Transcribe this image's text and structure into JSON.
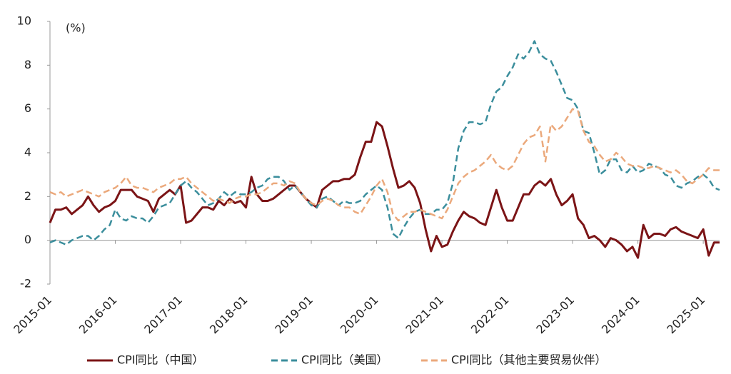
{
  "chart_data": {
    "type": "line",
    "y_unit": "(%)",
    "categories": [
      "2015-01",
      null,
      null,
      null,
      null,
      null,
      null,
      null,
      null,
      null,
      null,
      null,
      "2016-01",
      null,
      null,
      null,
      null,
      null,
      null,
      null,
      null,
      null,
      null,
      null,
      "2017-01",
      null,
      null,
      null,
      null,
      null,
      null,
      null,
      null,
      null,
      null,
      null,
      "2018-01",
      null,
      null,
      null,
      null,
      null,
      null,
      null,
      null,
      null,
      null,
      null,
      "2019-01",
      null,
      null,
      null,
      null,
      null,
      null,
      null,
      null,
      null,
      null,
      null,
      "2020-01",
      null,
      null,
      null,
      null,
      null,
      null,
      null,
      null,
      null,
      null,
      null,
      "2021-01",
      null,
      null,
      null,
      null,
      null,
      null,
      null,
      null,
      null,
      null,
      null,
      "2022-01",
      null,
      null,
      null,
      null,
      null,
      null,
      null,
      null,
      null,
      null,
      null,
      "2023-01",
      null,
      null,
      null,
      null,
      null,
      null,
      null,
      null,
      null,
      null,
      null,
      "2024-01",
      null,
      null,
      null,
      null,
      null,
      null,
      null,
      null,
      null,
      null,
      null,
      "2025-01",
      null,
      null,
      null
    ],
    "series": [
      {
        "name": "CPI同比（中国）",
        "color": "#7b1416",
        "dash": false,
        "values": [
          0.8,
          1.4,
          1.4,
          1.5,
          1.2,
          1.4,
          1.6,
          2.0,
          1.6,
          1.3,
          1.5,
          1.6,
          1.8,
          2.3,
          2.3,
          2.3,
          2.0,
          1.9,
          1.8,
          1.3,
          1.9,
          2.1,
          2.3,
          2.1,
          2.5,
          0.8,
          0.9,
          1.2,
          1.5,
          1.5,
          1.4,
          1.8,
          1.6,
          1.9,
          1.7,
          1.8,
          1.5,
          2.9,
          2.1,
          1.8,
          1.8,
          1.9,
          2.1,
          2.3,
          2.5,
          2.5,
          2.2,
          1.9,
          1.7,
          1.5,
          2.3,
          2.5,
          2.7,
          2.7,
          2.8,
          2.8,
          3.0,
          3.8,
          4.5,
          4.5,
          5.4,
          5.2,
          4.3,
          3.3,
          2.4,
          2.5,
          2.7,
          2.4,
          1.7,
          0.5,
          -0.5,
          0.2,
          -0.3,
          -0.2,
          0.4,
          0.9,
          1.3,
          1.1,
          1.0,
          0.8,
          0.7,
          1.5,
          2.3,
          1.5,
          0.9,
          0.9,
          1.5,
          2.1,
          2.1,
          2.5,
          2.7,
          2.5,
          2.8,
          2.1,
          1.6,
          1.8,
          2.1,
          1.0,
          0.7,
          0.1,
          0.2,
          0.0,
          -0.3,
          0.1,
          0.0,
          -0.2,
          -0.5,
          -0.3,
          -0.8,
          0.7,
          0.1,
          0.3,
          0.3,
          0.2,
          0.5,
          0.6,
          0.4,
          0.3,
          0.2,
          0.1,
          0.5,
          -0.7,
          -0.1,
          -0.1
        ]
      },
      {
        "name": "CPI同比（美国）",
        "color": "#3b8e9c",
        "dash": true,
        "values": [
          -0.1,
          0.0,
          -0.1,
          -0.2,
          0.0,
          0.1,
          0.2,
          0.2,
          0.0,
          0.2,
          0.5,
          0.7,
          1.4,
          1.0,
          0.9,
          1.1,
          1.0,
          1.0,
          0.8,
          1.1,
          1.5,
          1.6,
          1.7,
          2.1,
          2.5,
          2.7,
          2.4,
          2.2,
          1.9,
          1.6,
          1.7,
          1.9,
          2.2,
          2.0,
          2.2,
          2.1,
          2.1,
          2.2,
          2.4,
          2.5,
          2.8,
          2.9,
          2.9,
          2.7,
          2.3,
          2.5,
          2.2,
          1.9,
          1.6,
          1.5,
          1.9,
          2.0,
          1.8,
          1.6,
          1.8,
          1.7,
          1.7,
          1.8,
          2.1,
          2.3,
          2.5,
          2.3,
          1.5,
          0.3,
          0.1,
          0.6,
          1.0,
          1.3,
          1.4,
          1.2,
          1.2,
          1.4,
          1.4,
          1.7,
          2.6,
          4.2,
          5.0,
          5.4,
          5.4,
          5.3,
          5.4,
          6.2,
          6.8,
          7.0,
          7.5,
          7.9,
          8.5,
          8.3,
          8.6,
          9.1,
          8.5,
          8.3,
          8.2,
          7.7,
          7.1,
          6.5,
          6.4,
          6.0,
          5.0,
          4.9,
          4.0,
          3.0,
          3.2,
          3.7,
          3.7,
          3.2,
          3.1,
          3.4,
          3.1,
          3.2,
          3.5,
          3.4,
          3.3,
          3.0,
          2.9,
          2.5,
          2.4,
          2.6,
          2.7,
          2.9,
          3.0,
          2.8,
          2.4,
          2.3
        ]
      },
      {
        "name": "CPI同比（其他主要贸易伙伴）",
        "color": "#eba97c",
        "dash": true,
        "values": [
          2.2,
          2.1,
          2.2,
          2.0,
          2.1,
          2.2,
          2.3,
          2.2,
          2.1,
          2.0,
          2.2,
          2.3,
          2.4,
          2.6,
          2.9,
          2.5,
          2.4,
          2.4,
          2.3,
          2.2,
          2.4,
          2.5,
          2.6,
          2.8,
          2.8,
          2.9,
          2.6,
          2.4,
          2.2,
          2.0,
          1.8,
          1.9,
          1.8,
          1.7,
          1.9,
          2.0,
          2.0,
          2.1,
          2.1,
          2.2,
          2.4,
          2.6,
          2.6,
          2.5,
          2.7,
          2.6,
          2.2,
          1.9,
          1.7,
          1.6,
          1.8,
          1.9,
          1.8,
          1.6,
          1.5,
          1.5,
          1.3,
          1.2,
          1.6,
          2.0,
          2.5,
          2.8,
          2.2,
          1.2,
          0.9,
          1.1,
          1.3,
          1.3,
          1.4,
          1.3,
          1.2,
          1.1,
          1.0,
          1.4,
          2.0,
          2.6,
          2.9,
          3.1,
          3.2,
          3.4,
          3.6,
          3.9,
          3.5,
          3.3,
          3.2,
          3.4,
          3.9,
          4.4,
          4.7,
          4.8,
          5.2,
          3.6,
          5.3,
          5.0,
          5.2,
          5.6,
          6.0,
          5.9,
          5.0,
          4.5,
          4.3,
          3.9,
          3.6,
          3.7,
          4.0,
          3.8,
          3.5,
          3.4,
          3.4,
          3.3,
          3.3,
          3.4,
          3.3,
          3.2,
          3.1,
          3.2,
          3.0,
          2.7,
          2.6,
          2.8,
          3.0,
          3.3,
          3.2,
          3.2
        ]
      }
    ],
    "ylim": [
      -2,
      10
    ],
    "yticks": [
      -2,
      0,
      2,
      4,
      6,
      8,
      10
    ],
    "grid": false
  }
}
